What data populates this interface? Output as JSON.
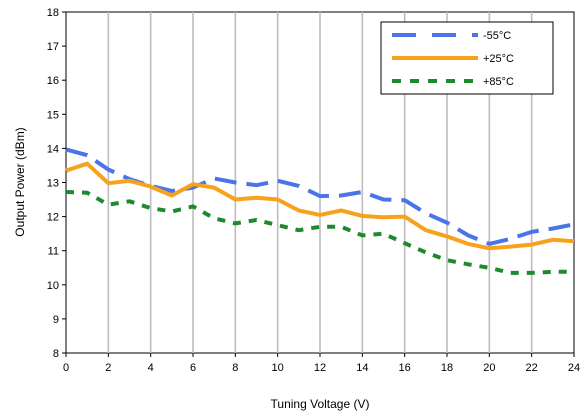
{
  "chart_data": {
    "type": "line",
    "title": "",
    "xlabel": "Tuning Voltage (V)",
    "ylabel": "Output Power (dBm)",
    "xlim": [
      0,
      24
    ],
    "ylim": [
      8,
      18
    ],
    "x_ticks": [
      "0",
      "2",
      "4",
      "6",
      "8",
      "10",
      "12",
      "14",
      "16",
      "18",
      "20",
      "22",
      "24"
    ],
    "y_ticks": [
      "8",
      "9",
      "10",
      "11",
      "12",
      "13",
      "14",
      "15",
      "16",
      "17",
      "18"
    ],
    "grid": "vertical",
    "legend_position": "top-right",
    "x": [
      0,
      1,
      2,
      3,
      4,
      5,
      6,
      7,
      8,
      9,
      10,
      11,
      12,
      13,
      14,
      15,
      16,
      17,
      18,
      19,
      20,
      21,
      22,
      23,
      24
    ],
    "series": [
      {
        "name": "-55°C",
        "color": "#4a74e8",
        "dash": "dash",
        "values": [
          13.97,
          13.8,
          13.38,
          13.1,
          12.9,
          12.75,
          12.85,
          13.12,
          13.0,
          12.92,
          13.05,
          12.9,
          12.6,
          12.62,
          12.72,
          12.5,
          12.48,
          12.1,
          11.82,
          11.45,
          11.2,
          11.35,
          11.55,
          11.65,
          11.77
        ]
      },
      {
        "name": "+25°C",
        "color": "#f7a21d",
        "dash": "solid",
        "values": [
          13.35,
          13.55,
          12.98,
          13.05,
          12.88,
          12.62,
          12.95,
          12.85,
          12.5,
          12.55,
          12.5,
          12.18,
          12.05,
          12.18,
          12.02,
          11.98,
          12.0,
          11.6,
          11.42,
          11.2,
          11.07,
          11.12,
          11.18,
          11.32,
          11.28
        ]
      },
      {
        "name": "+85°C",
        "color": "#1e8a2e",
        "dash": "dot",
        "values": [
          12.72,
          12.7,
          12.35,
          12.45,
          12.25,
          12.15,
          12.3,
          11.95,
          11.8,
          11.9,
          11.75,
          11.6,
          11.7,
          11.7,
          11.45,
          11.5,
          11.22,
          10.95,
          10.72,
          10.6,
          10.5,
          10.35,
          10.35,
          10.38,
          10.38
        ]
      }
    ]
  }
}
